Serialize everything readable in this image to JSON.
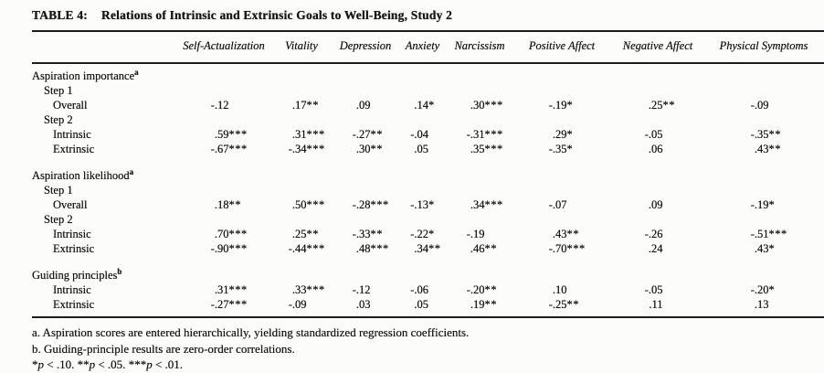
{
  "table": {
    "title_label": "TABLE 4:",
    "title_text": "Relations of Intrinsic and Extrinsic Goals to Well-Being, Study 2",
    "columns": [
      "Self-Actualization",
      "Vitality",
      "Depression",
      "Anxiety",
      "Narcissism",
      "Positive Affect",
      "Negative Affect",
      "Physical Symptoms"
    ],
    "rows": [
      {
        "label": "Aspiration importance",
        "sup": "a",
        "indent": 0,
        "values": []
      },
      {
        "label": "Step 1",
        "indent": 1,
        "values": []
      },
      {
        "label": "Overall",
        "indent": 2,
        "values": [
          "-.12",
          ".17**",
          ".09",
          ".14*",
          ".30***",
          "-.19*",
          ".25**",
          "-.09"
        ]
      },
      {
        "label": "Step 2",
        "indent": 1,
        "values": []
      },
      {
        "label": "Intrinsic",
        "indent": 2,
        "values": [
          ".59***",
          ".31***",
          "-.27**",
          "-.04",
          "-.31***",
          ".29*",
          "-.05",
          "-.35**"
        ]
      },
      {
        "label": "Extrinsic",
        "indent": 2,
        "values": [
          "-.67***",
          "-.34***",
          ".30**",
          ".05",
          ".35***",
          "-.35*",
          ".06",
          ".43**"
        ]
      },
      {
        "label": "Aspiration likelihood",
        "sup": "a",
        "indent": 0,
        "values": [],
        "spacer_before": true
      },
      {
        "label": "Step 1",
        "indent": 1,
        "values": []
      },
      {
        "label": "Overall",
        "indent": 2,
        "values": [
          ".18**",
          ".50***",
          "-.28***",
          "-.13*",
          ".34***",
          "-.07",
          ".09",
          "-.19*"
        ]
      },
      {
        "label": "Step 2",
        "indent": 1,
        "values": []
      },
      {
        "label": "Intrinsic",
        "indent": 2,
        "values": [
          ".70***",
          ".25**",
          "-.33**",
          "-.22*",
          "-.19",
          ".43**",
          "-.26",
          "-.51***"
        ]
      },
      {
        "label": "Extrinsic",
        "indent": 2,
        "values": [
          "-.90***",
          "-.44***",
          ".48***",
          ".34**",
          ".46**",
          "-.70***",
          ".24",
          ".43*"
        ]
      },
      {
        "label": "Guiding principles",
        "sup": "b",
        "indent": 0,
        "values": [],
        "spacer_before": true
      },
      {
        "label": "Intrinsic",
        "indent": 2,
        "values": [
          ".31***",
          ".33***",
          "-.12",
          "-.06",
          "-.20**",
          ".10",
          "-.05",
          "-.20*"
        ]
      },
      {
        "label": "Extrinsic",
        "indent": 2,
        "values": [
          "-.27***",
          "-.09",
          ".03",
          ".05",
          ".19**",
          "-.25**",
          ".11",
          ".13"
        ]
      }
    ],
    "footnotes": [
      "a. Aspiration scores are entered hierarchically, yielding standardized regression coefficients.",
      "b. Guiding-principle results are zero-order correlations."
    ],
    "significance": [
      {
        "pre": "*",
        "var": "p",
        "rest": " < .10. "
      },
      {
        "pre": "**",
        "var": "p",
        "rest": " < .05. "
      },
      {
        "pre": "***",
        "var": "p",
        "rest": " < .01."
      }
    ]
  },
  "colors": {
    "ink": "#151515",
    "rule": "#1d1d1b",
    "paper": "#fcfcfa"
  }
}
